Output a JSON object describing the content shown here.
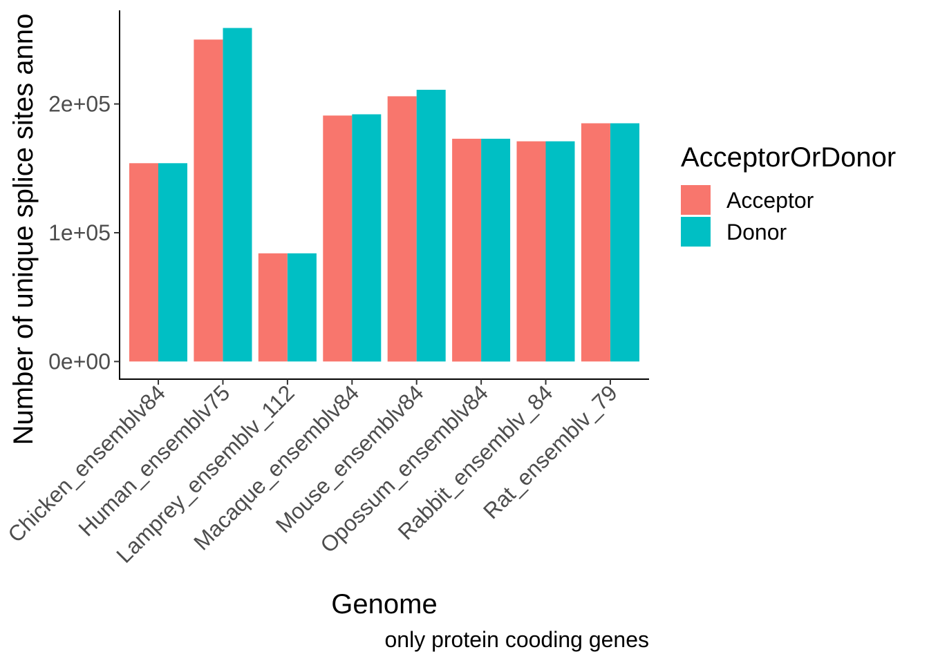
{
  "chart_data": {
    "type": "bar",
    "title": "",
    "xlabel": "Genome",
    "ylabel": "Number of unique splice sites anno",
    "caption": "only protein cooding genes",
    "categories": [
      "Chicken_ensemblv84",
      "Human_ensemblv75",
      "Lamprey_ensemblv_112",
      "Macaque_ensemblv84",
      "Mouse_ensemblv84",
      "Opossum_ensemblv84",
      "Rabbit_ensemblv_84",
      "Rat_ensemblv_79"
    ],
    "series": [
      {
        "name": "Acceptor",
        "color": "#F8766D",
        "values": [
          154000,
          250000,
          84000,
          191000,
          206000,
          173000,
          171000,
          185000
        ]
      },
      {
        "name": "Donor",
        "color": "#00BFC4",
        "values": [
          154000,
          259000,
          84000,
          192000,
          211000,
          173000,
          171000,
          185000
        ]
      }
    ],
    "y_ticks": [
      {
        "value": 0,
        "label": "0e+00"
      },
      {
        "value": 100000,
        "label": "1e+05"
      },
      {
        "value": 200000,
        "label": "2e+05"
      }
    ],
    "ylim": [
      -13700,
      272700
    ],
    "legend": {
      "title": "AcceptorOrDonor",
      "position": "right"
    },
    "grid": false
  }
}
